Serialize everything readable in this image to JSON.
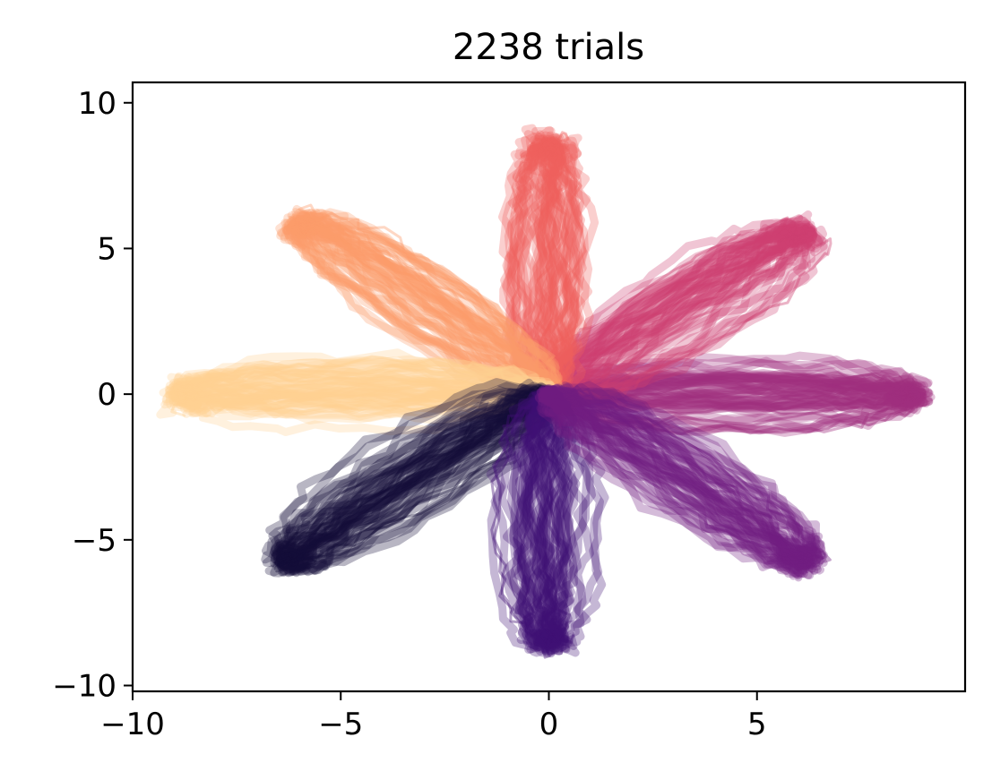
{
  "chart_data": {
    "type": "line",
    "title": "2238 trials",
    "xlabel": "",
    "ylabel": "",
    "xlim": [
      -10,
      10
    ],
    "ylim": [
      -10.2,
      10.7
    ],
    "x_ticks": [
      -10,
      -5,
      0,
      5
    ],
    "x_tick_labels": [
      "−10",
      "−5",
      "0",
      "5"
    ],
    "y_ticks": [
      10,
      5,
      0,
      -5,
      -10
    ],
    "y_tick_labels": [
      "10",
      "5",
      "0",
      "−5",
      "−10"
    ],
    "grid": false,
    "legend": "none",
    "colormap": "magma",
    "series": [
      {
        "direction_deg": 0,
        "color": "#9f2f7f",
        "endpoint": [
          8.8,
          -0.1
        ]
      },
      {
        "direction_deg": 45,
        "color": "#cd4071",
        "endpoint": [
          6.1,
          5.6
        ]
      },
      {
        "direction_deg": 90,
        "color": "#f0605d",
        "endpoint": [
          0.0,
          8.6
        ]
      },
      {
        "direction_deg": 135,
        "color": "#fc9c6b",
        "endpoint": [
          -6.0,
          5.9
        ]
      },
      {
        "direction_deg": 180,
        "color": "#fecf92",
        "endpoint": [
          -8.9,
          -0.1
        ]
      },
      {
        "direction_deg": 225,
        "color": "#150e37",
        "endpoint": [
          -6.3,
          -5.8
        ]
      },
      {
        "direction_deg": 270,
        "color": "#400f74",
        "endpoint": [
          0.0,
          -8.6
        ]
      },
      {
        "direction_deg": 315,
        "color": "#721f81",
        "endpoint": [
          6.2,
          -5.8
        ]
      }
    ]
  }
}
